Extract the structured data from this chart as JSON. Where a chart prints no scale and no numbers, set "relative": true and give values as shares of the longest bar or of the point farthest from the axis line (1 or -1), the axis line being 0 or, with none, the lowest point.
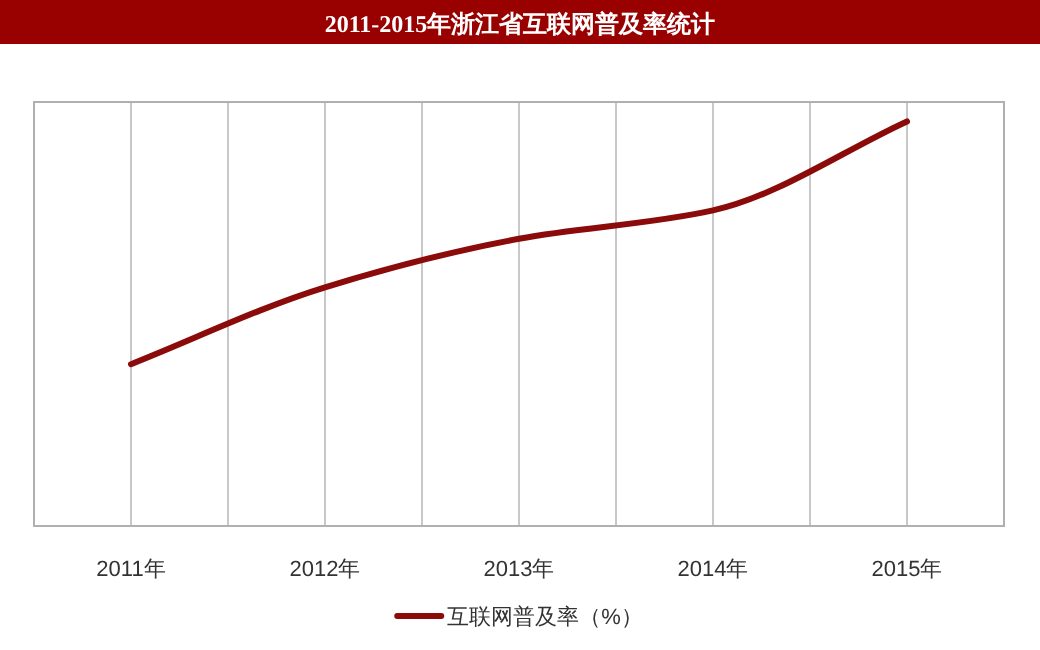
{
  "chart_data": {
    "type": "line",
    "title": "2011-2015年浙江省互联网普及率统计",
    "categories": [
      "2011年",
      "2012年",
      "2013年",
      "2014年",
      "2015年"
    ],
    "series": [
      {
        "name": "互联网普及率（%）",
        "color": "#8b0a0a",
        "values": [
          0.4,
          0.59,
          0.71,
          0.78,
          1
        ]
      }
    ],
    "relative": true,
    "grid": "x",
    "legend": "bottom",
    "marker": "none",
    "line_style": "solid"
  }
}
